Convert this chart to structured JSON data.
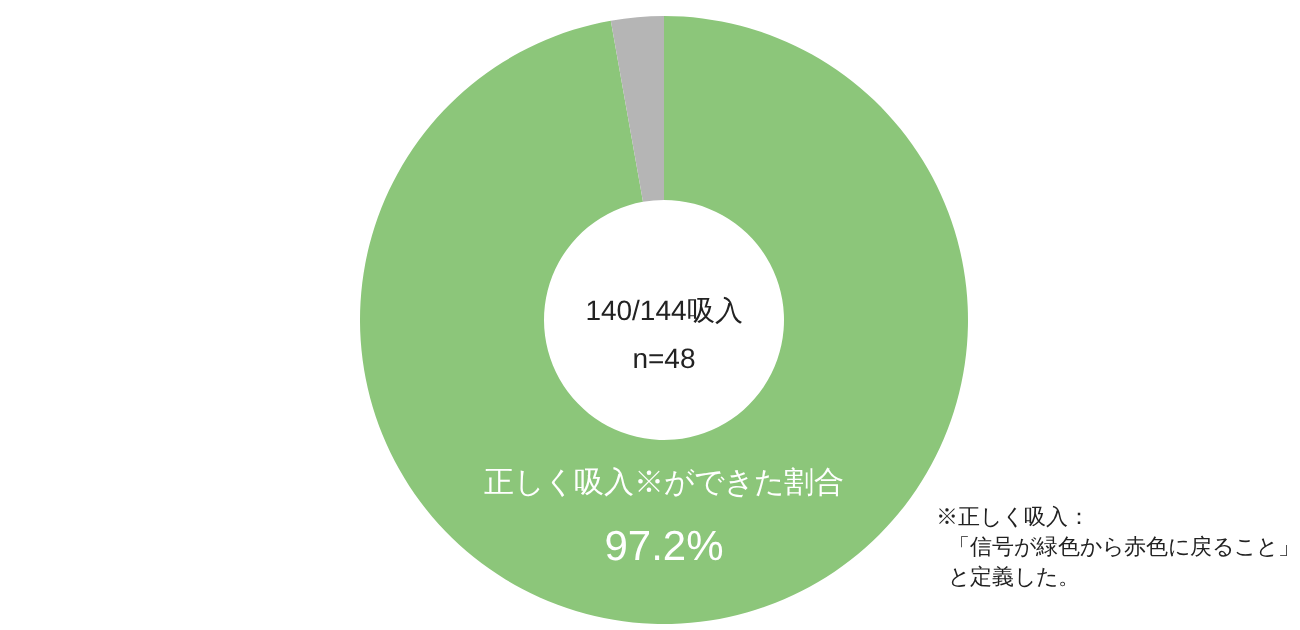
{
  "chart_data": {
    "type": "donut",
    "categories": [
      "正しく吸入※ができた割合",
      null
    ],
    "values": [
      97.2,
      2.8
    ],
    "colors": [
      "#8cc67a",
      "#b5b5b5"
    ],
    "value_labels": [
      "97.2%",
      null
    ],
    "annotations": [
      "140/144吸入",
      "n=48",
      "※正しく吸入：",
      "「信号が緑色から赤色に戻ること」",
      "と定義した。"
    ]
  }
}
